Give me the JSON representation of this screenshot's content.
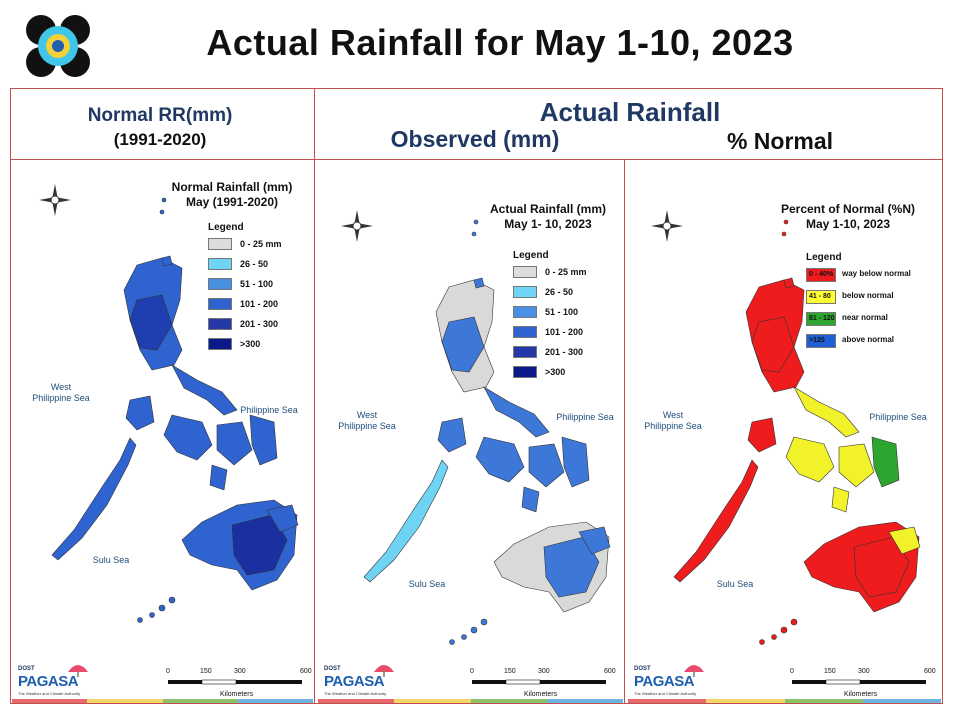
{
  "header": {
    "title": "Actual Rainfall for May 1-10, 2023",
    "normal_label_line1": "Normal RR(mm)",
    "normal_label_line2": "(1991-2020)",
    "actual_label": "Actual Rainfall",
    "observed_label": "Observed (mm)",
    "percent_label": "% Normal"
  },
  "panels": [
    {
      "title_line1": "Normal Rainfall (mm)",
      "title_line2": "May (1991-2020)",
      "legend_title": "Legend",
      "legend": [
        {
          "label": "0 - 25 mm",
          "color": "#dcdcdc"
        },
        {
          "label": "26 - 50",
          "color": "#6fd3f5"
        },
        {
          "label": "51 - 100",
          "color": "#4a90e2"
        },
        {
          "label": "101 - 200",
          "color": "#2f64d0"
        },
        {
          "label": "201 - 300",
          "color": "#2538a8"
        },
        {
          "label": ">300",
          "color": "#0a1a8a"
        }
      ],
      "sea_west_1": "West",
      "sea_west_2": "Philippine Sea",
      "sea_east": "Philippine Sea",
      "sea_sulu": "Sulu Sea",
      "scale": [
        "0",
        "150",
        "300",
        "600"
      ],
      "scale_unit": "Kilometers",
      "map_color": "#2f64d0",
      "map_color_dark": "#1a2fa0"
    },
    {
      "title_line1": "Actual Rainfall (mm)",
      "title_line2": "May 1- 10, 2023",
      "legend_title": "Legend",
      "legend": [
        {
          "label": "0 - 25 mm",
          "color": "#dcdcdc"
        },
        {
          "label": "26 - 50",
          "color": "#6fd3f5"
        },
        {
          "label": "51 - 100",
          "color": "#4a90e2"
        },
        {
          "label": "101 - 200",
          "color": "#2f64d0"
        },
        {
          "label": "201 - 300",
          "color": "#2538a8"
        },
        {
          "label": ">300",
          "color": "#0a1a8a"
        }
      ],
      "sea_west_1": "West",
      "sea_west_2": "Philippine Sea",
      "sea_east": "Philippine Sea",
      "sea_sulu": "Sulu Sea",
      "scale": [
        "0",
        "150",
        "300",
        "600"
      ],
      "scale_unit": "Kilometers",
      "map_color": "#3d78d8",
      "map_color_dark": "#d9d9d9"
    },
    {
      "title_line1": "Percent of Normal (%N)",
      "title_line2": "May 1-10, 2023",
      "legend_title": "Legend",
      "legend": [
        {
          "range": "0 - 40%",
          "label": "way below normal",
          "color": "#ee1c1c"
        },
        {
          "range": "41 - 80",
          "label": "below normal",
          "color": "#ffff33"
        },
        {
          "range": "81 - 120",
          "label": "near normal",
          "color": "#2ea52e"
        },
        {
          "range": ">120",
          "label": "above normal",
          "color": "#1f5fd6"
        }
      ],
      "sea_west_1": "West",
      "sea_west_2": "Philippine Sea",
      "sea_east": "Philippine Sea",
      "sea_sulu": "Sulu Sea",
      "scale": [
        "0",
        "150",
        "300",
        "600"
      ],
      "scale_unit": "Kilometers",
      "map_color": "#ee1c1c",
      "map_color_dark": "#f2f22a"
    }
  ],
  "branding": {
    "logo_text": "PAGASA",
    "logo_sub": "DOST",
    "logo_tag": "The Weather and Climate Authority"
  }
}
